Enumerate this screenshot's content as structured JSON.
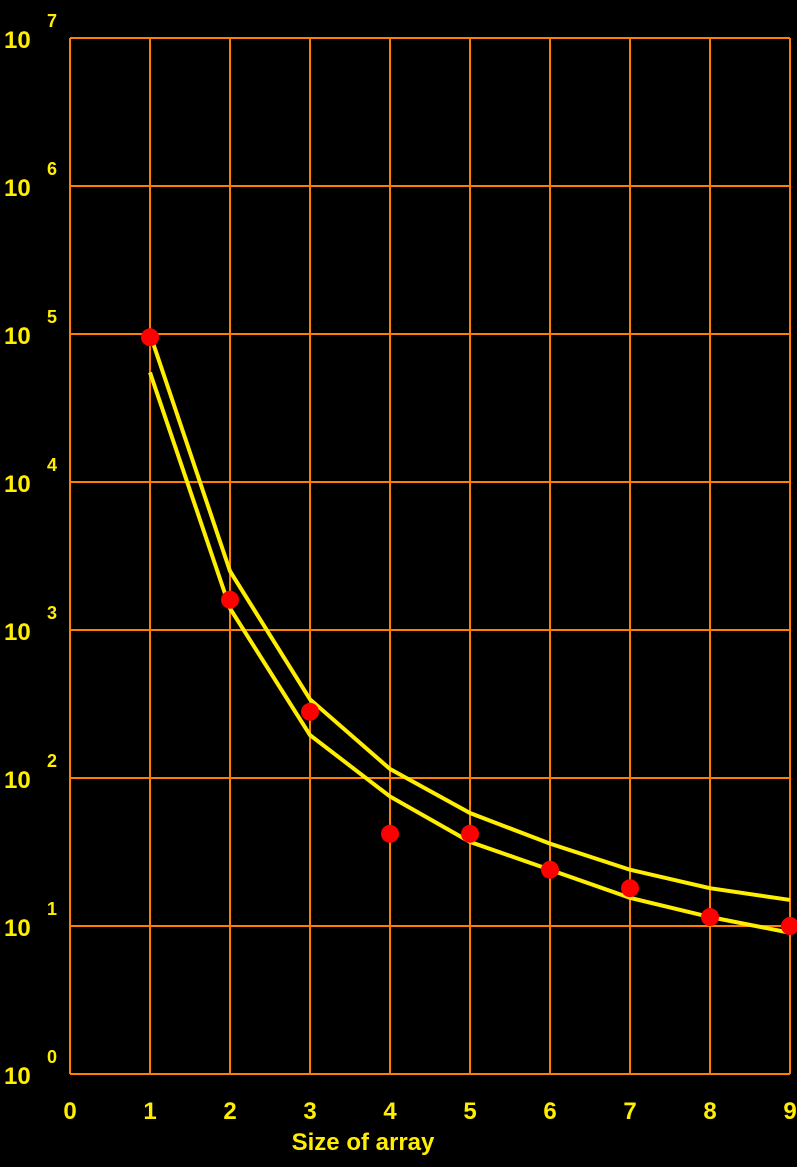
{
  "chart_data": {
    "type": "line",
    "xlabel": "Size of array",
    "ylabel": "",
    "xlim": [
      0,
      9
    ],
    "ylim": [
      1,
      10000000
    ],
    "yscale": "log",
    "grid": true,
    "x_ticks": [
      "0",
      "1",
      "2",
      "3",
      "4",
      "5",
      "6",
      "7",
      "8",
      "9"
    ],
    "y_ticks": [
      {
        "base": "10",
        "exp": "0"
      },
      {
        "base": "10",
        "exp": "1"
      },
      {
        "base": "10",
        "exp": "2"
      },
      {
        "base": "10",
        "exp": "3"
      },
      {
        "base": "10",
        "exp": "4"
      },
      {
        "base": "10",
        "exp": "5"
      },
      {
        "base": "10",
        "exp": "6"
      },
      {
        "base": "10",
        "exp": "7"
      }
    ],
    "series": [
      {
        "kind": "line",
        "x": [
          1,
          2,
          3,
          4,
          5,
          6,
          7,
          8,
          9
        ],
        "values": [
          100000,
          2500,
          340,
          115,
          58,
          36,
          24,
          18,
          15
        ]
      },
      {
        "kind": "line",
        "x": [
          1,
          2,
          3,
          4,
          5,
          6,
          7,
          8,
          9
        ],
        "values": [
          55000,
          1400,
          195,
          75,
          37,
          24,
          15.5,
          11.5,
          9
        ]
      },
      {
        "kind": "scatter",
        "x": [
          1,
          2,
          3,
          4,
          5,
          6,
          7,
          8,
          9
        ],
        "values": [
          95000,
          1600,
          280,
          42,
          42,
          24,
          18,
          11.5,
          10
        ]
      }
    ],
    "colors": {
      "background": "#000000",
      "grid": "#ff8000",
      "line": "#ffee00",
      "marker": "#ff0000",
      "text": "#ffee00"
    }
  }
}
